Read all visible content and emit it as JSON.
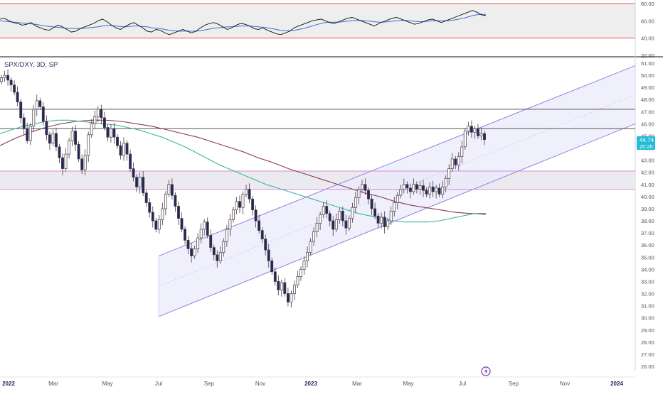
{
  "symbol_label": "SPX/DXY, 3D, SP",
  "price_badge": {
    "value": "44.74",
    "countdown": "20:2h"
  },
  "footer_icon": "lightning-icon",
  "colors": {
    "up_fill": "#ffffff",
    "down_fill": "#1e2a5a",
    "candle_outline": "#4a3a44",
    "ma_fast": "#3fb59c",
    "ma_slow": "#8a3a55",
    "channel": "#8f86d8",
    "channel_fill": "#ebe9fb",
    "zone_fill": "#ebebef",
    "zone_border": "#d98adf",
    "level_line": "#555555",
    "rsi_bounds": "#e05252",
    "rsi_line": "#111111",
    "rsi_ma": "#3b6fd3",
    "badge_bg": "#22bcd6",
    "accent_purple": "#7a2ea8"
  },
  "chart_data": [
    {
      "type": "line",
      "title": "",
      "series": [],
      "ylim": [
        20,
        80
      ],
      "y_ticks": [
        "80.00",
        "60.00",
        "40.00",
        "20.00"
      ],
      "reference_levels": [
        80,
        40
      ],
      "rsi": [
        62,
        63,
        60,
        58,
        57,
        55,
        56,
        58,
        54,
        52,
        50,
        49,
        52,
        55,
        53,
        50,
        47,
        48,
        51,
        53,
        55,
        57,
        60,
        62,
        59,
        55,
        52,
        50,
        53,
        56,
        58,
        55,
        52,
        48,
        47,
        50,
        49,
        46,
        44,
        46,
        48,
        50,
        48,
        46,
        48,
        52,
        55,
        57,
        58,
        56,
        53,
        50,
        52,
        55,
        57,
        56,
        54,
        51,
        50,
        52,
        49,
        47,
        45,
        44,
        46,
        48,
        52,
        54,
        56,
        58,
        60,
        61,
        62,
        60,
        58,
        57,
        59,
        61,
        63,
        64,
        62,
        60,
        58,
        56,
        54,
        57,
        59,
        61,
        63,
        64,
        62,
        60,
        58,
        56,
        57,
        59,
        61,
        62,
        60,
        58,
        60,
        62,
        64,
        66,
        68,
        70,
        72,
        70,
        67,
        66
      ],
      "rsi_ma": [
        60,
        59.5,
        59,
        58.5,
        58,
        57.5,
        57,
        56.5,
        56,
        55,
        54,
        53.5,
        53,
        52.5,
        52,
        51.5,
        51,
        51,
        51,
        51.5,
        52,
        52.5,
        53,
        54,
        54.5,
        54.5,
        54,
        53.5,
        53,
        53.5,
        54,
        54,
        53.5,
        53,
        52,
        51.5,
        51,
        50,
        49,
        48.5,
        48,
        48,
        48,
        48,
        48,
        48.5,
        49.5,
        50.5,
        51.5,
        52,
        52.5,
        53,
        53,
        53.5,
        54,
        54,
        54,
        53.5,
        53,
        52.5,
        52,
        51,
        50,
        49,
        48.5,
        48.5,
        49,
        50,
        51,
        52.5,
        54,
        55.5,
        57,
        58,
        58.5,
        58.5,
        58.5,
        59,
        59.5,
        60,
        60.5,
        60.5,
        60,
        59.5,
        59,
        58.5,
        58.5,
        59,
        59.5,
        60,
        60.5,
        60.5,
        60,
        59.5,
        59,
        59,
        59.5,
        60,
        60,
        60,
        60,
        60.5,
        61,
        62,
        63,
        64.5,
        66,
        67,
        67.5,
        67.5
      ]
    },
    {
      "type": "candlestick",
      "title": "SPX/DXY, 3D, SP",
      "x_ticks": [
        "2022",
        "Mar",
        "May",
        "Jul",
        "Sep",
        "Nov",
        "2023",
        "Mar",
        "May",
        "Jul",
        "Sep",
        "Nov",
        "2024"
      ],
      "y_ticks": [
        "51.00",
        "50.00",
        "49.00",
        "48.00",
        "47.00",
        "46.00",
        "45.00",
        "44.00",
        "43.00",
        "42.00",
        "41.00",
        "40.00",
        "39.00",
        "38.00",
        "37.00",
        "36.00",
        "35.00",
        "34.00",
        "33.00",
        "32.00",
        "31.00",
        "30.00",
        "29.00",
        "28.00",
        "27.00",
        "26.00"
      ],
      "ylim": [
        25.5,
        51.6
      ],
      "close": [
        49.8,
        50.0,
        49.6,
        49.2,
        48.6,
        47.8,
        46.5,
        45.6,
        44.6,
        45.8,
        47.2,
        47.9,
        47.4,
        46.2,
        45.1,
        44.4,
        45.2,
        44.1,
        43.2,
        42.3,
        43.5,
        44.6,
        45.4,
        44.3,
        43.1,
        42.2,
        43.4,
        45.1,
        46.0,
        46.6,
        47.2,
        46.5,
        45.7,
        44.9,
        45.6,
        44.9,
        44.2,
        43.4,
        44.4,
        43.5,
        42.3,
        41.6,
        40.8,
        41.6,
        40.3,
        39.5,
        38.7,
        38.0,
        37.3,
        38.1,
        39.0,
        40.2,
        41.0,
        40.1,
        39.2,
        38.2,
        37.3,
        36.4,
        35.7,
        35.1,
        35.7,
        36.6,
        37.3,
        37.9,
        36.8,
        35.8,
        35.2,
        34.7,
        35.4,
        36.3,
        37.3,
        38.1,
        38.9,
        39.6,
        39.1,
        40.2,
        40.6,
        39.8,
        38.9,
        38.0,
        37.2,
        36.5,
        35.6,
        34.7,
        33.8,
        33.0,
        32.3,
        32.9,
        32.0,
        31.3,
        32.0,
        32.7,
        33.4,
        34.0,
        34.7,
        35.4,
        36.3,
        37.1,
        37.8,
        38.5,
        39.2,
        38.6,
        38.0,
        37.3,
        38.1,
        38.8,
        38.0,
        37.4,
        38.2,
        39.1,
        39.9,
        40.6,
        41.0,
        40.5,
        39.8,
        39.0,
        38.4,
        37.8,
        38.3,
        37.5,
        38.0,
        38.8,
        39.5,
        40.1,
        40.6,
        41.0,
        40.7,
        40.4,
        41.0,
        40.6,
        40.9,
        40.5,
        40.2,
        40.8,
        40.4,
        40.7,
        40.2,
        40.8,
        41.5,
        42.3,
        43.1,
        42.6,
        43.3,
        44.1,
        45.4,
        45.8,
        45.3,
        45.6,
        45.0,
        45.2,
        44.7
      ],
      "ma_fast": [
        45.2,
        45.5,
        45.8,
        46.0,
        46.2,
        46.3,
        46.3,
        46.2,
        46.1,
        46.0,
        45.9,
        45.7,
        45.5,
        45.2,
        44.9,
        44.5,
        44.1,
        43.6,
        43.1,
        42.6,
        42.2,
        41.8,
        41.4,
        41.0,
        40.7,
        40.4,
        40.1,
        39.8,
        39.5,
        39.2,
        38.9,
        38.6,
        38.4,
        38.2,
        38.0,
        37.9,
        37.9,
        37.9,
        38.0,
        38.2,
        38.4,
        38.6,
        38.5
      ],
      "ma_slow": [
        44.2,
        44.8,
        45.3,
        45.7,
        46.0,
        46.2,
        46.3,
        46.3,
        46.2,
        46.0,
        45.8,
        45.5,
        45.2,
        44.9,
        44.5,
        44.1,
        43.7,
        43.2,
        42.8,
        42.3,
        41.9,
        41.5,
        41.1,
        40.7,
        40.3,
        40.0,
        39.6,
        39.3,
        39.1,
        38.9,
        38.7,
        38.6,
        38.6
      ],
      "horizontal_levels": [
        47.2,
        45.6
      ],
      "support_zone": [
        40.6,
        42.1
      ]
    }
  ]
}
